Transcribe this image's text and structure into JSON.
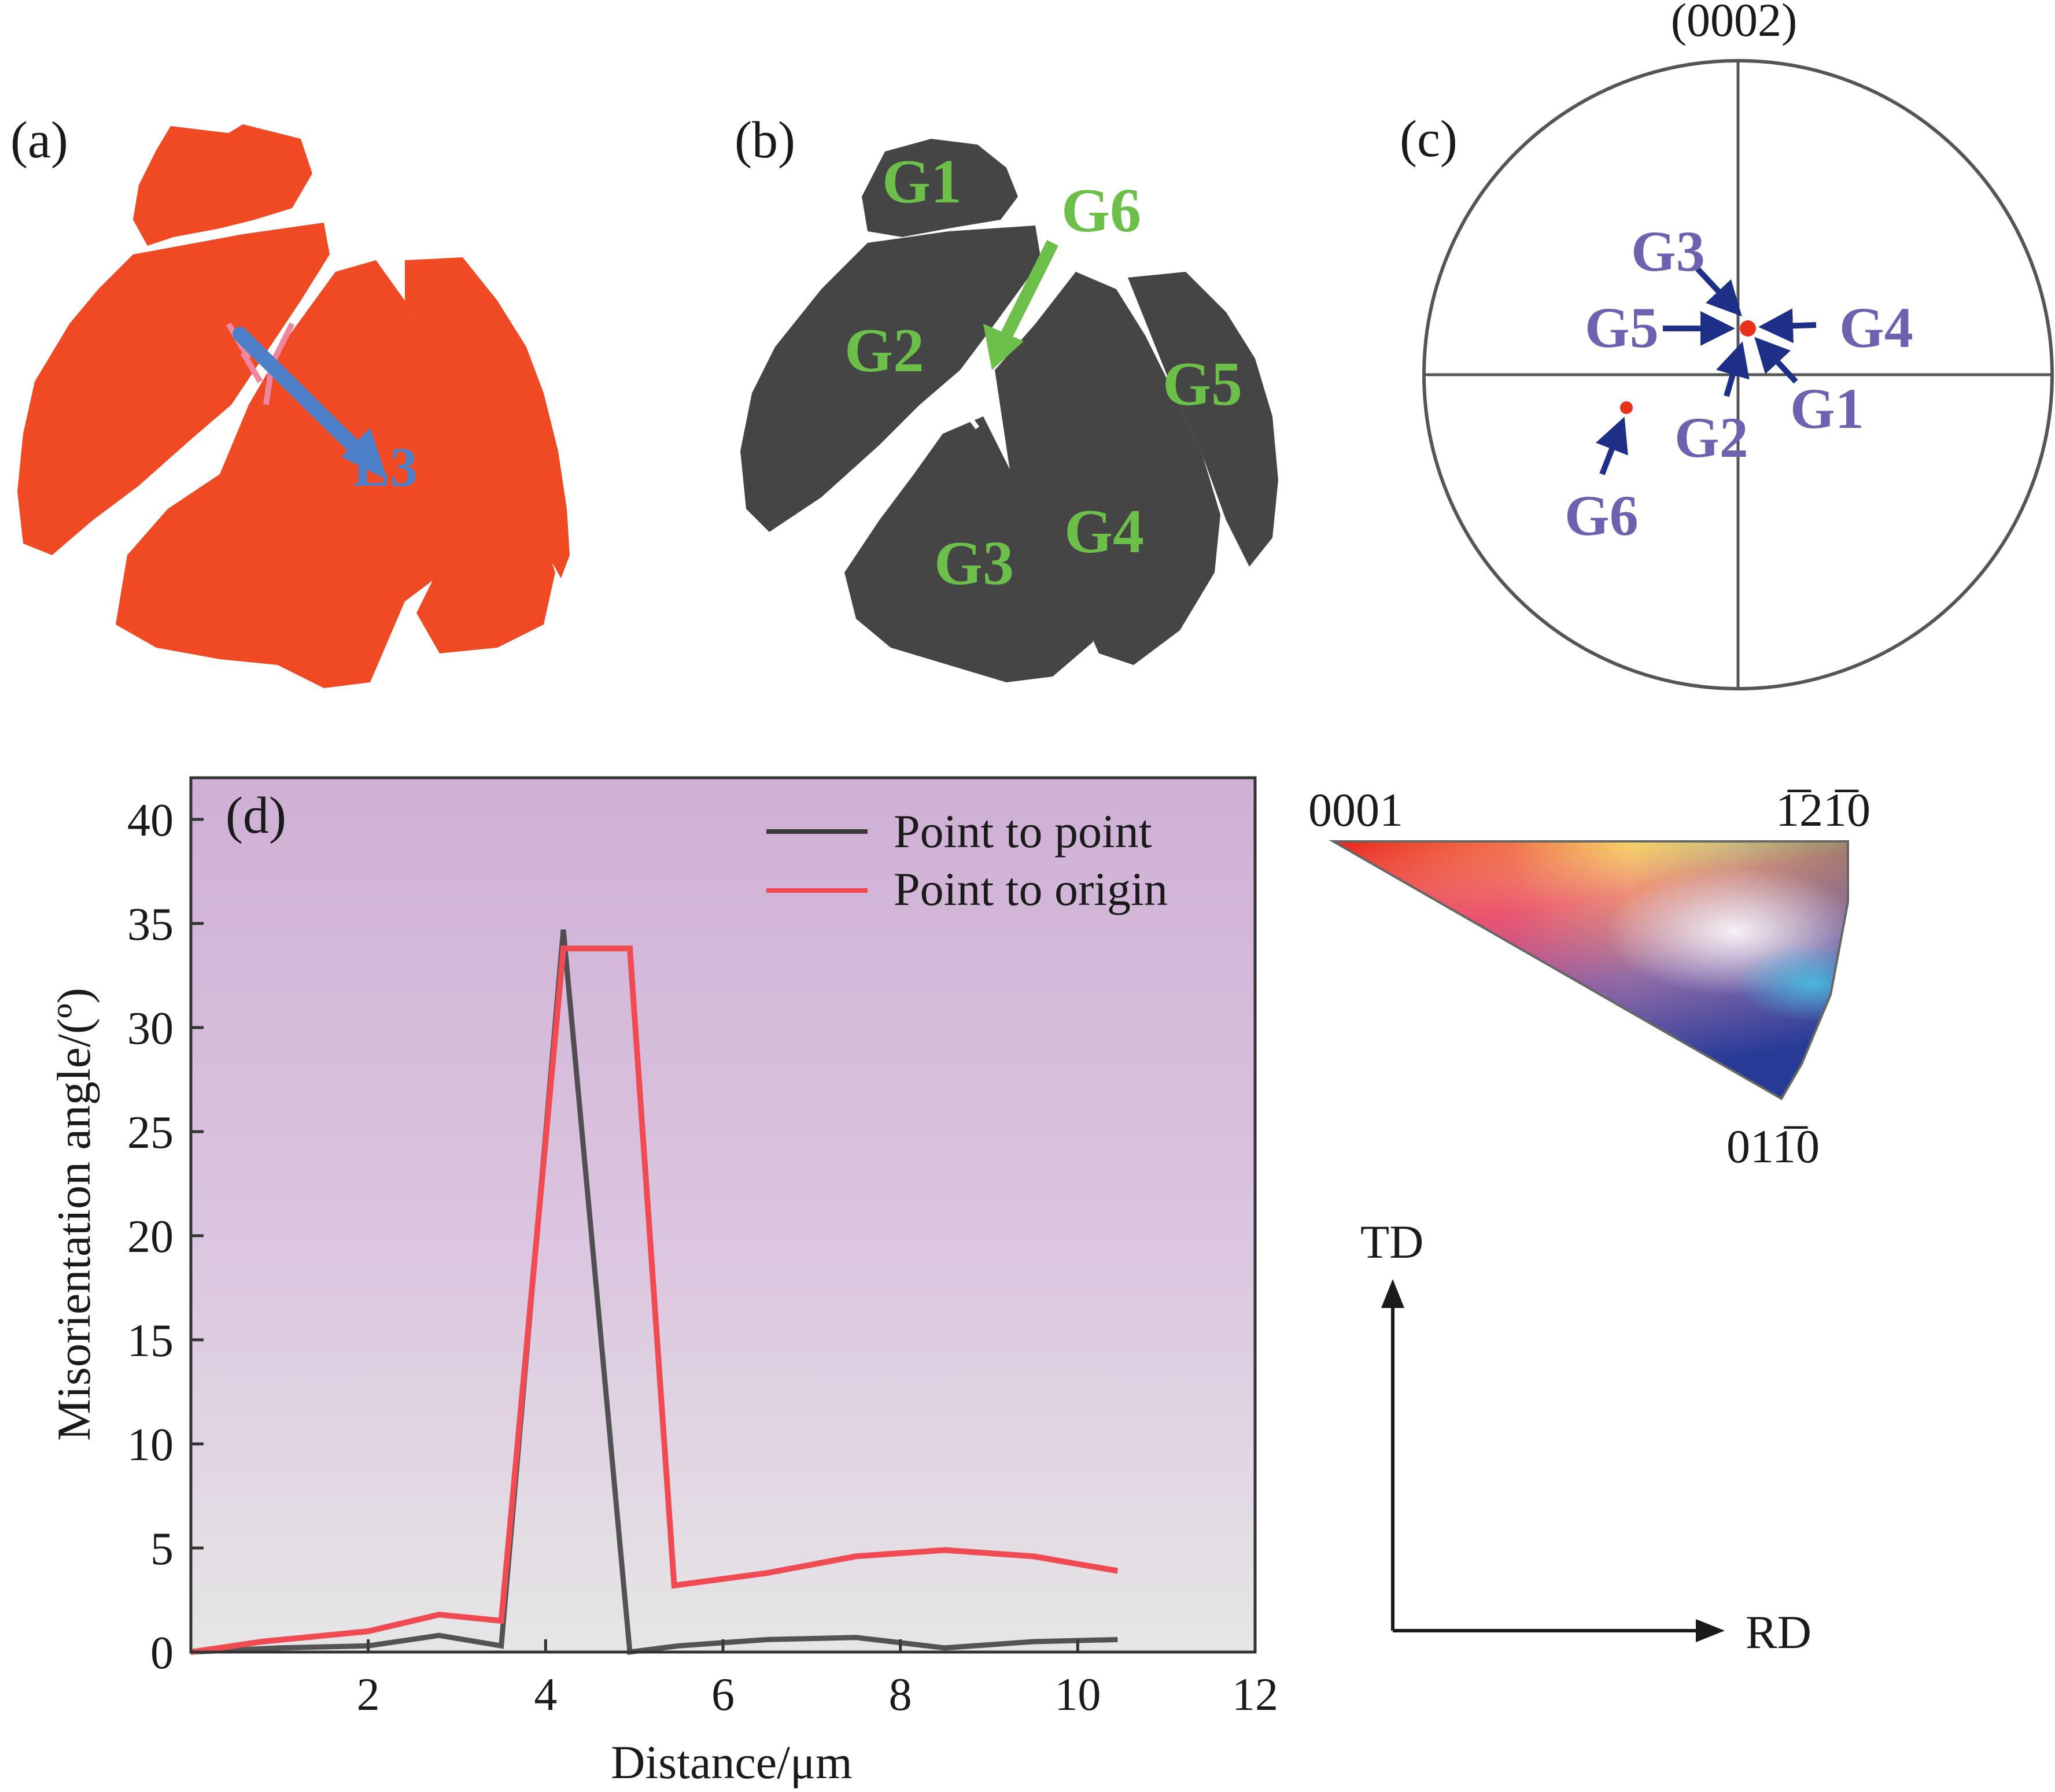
{
  "panels": {
    "a": {
      "label": "(a)",
      "line_label": "L3",
      "colors": {
        "grain": "#ef4a23",
        "arrow": "#4d80c8"
      }
    },
    "b": {
      "label": "(b)",
      "grains": [
        "G1",
        "G2",
        "G3",
        "G4",
        "G5",
        "G6"
      ],
      "colors": {
        "grain": "#454545",
        "label": "#6cc04a"
      }
    },
    "c": {
      "label": "(c)",
      "pole": "(0002)",
      "grains": [
        "G1",
        "G2",
        "G3",
        "G4",
        "G5",
        "G6"
      ],
      "colors": {
        "label": "#7060b0",
        "arrow": "#1d2f86",
        "point": "#e8321d"
      }
    },
    "d": {
      "label": "(d)"
    },
    "ipf": {
      "corners": {
        "basal": "0001",
        "top_right": "1̅21̅0",
        "bottom": "011̅0"
      }
    },
    "axes_ref": {
      "td": "TD",
      "rd": "RD"
    }
  },
  "chart_data": {
    "type": "line",
    "xlabel": "Distance/μm",
    "ylabel": "Misorientation angle/(º)",
    "xlim": [
      0,
      12
    ],
    "ylim": [
      0,
      42
    ],
    "xticks": [
      2,
      4,
      6,
      8,
      10,
      12
    ],
    "yticks": [
      0,
      5,
      10,
      15,
      20,
      25,
      30,
      35,
      40
    ],
    "legend_position": "top-right",
    "series": [
      {
        "name": "Point to point",
        "color": "#3a3a3a",
        "x": [
          0,
          1.0,
          2.0,
          2.8,
          3.5,
          4.2,
          4.95,
          5.5,
          6.5,
          7.5,
          8.5,
          9.5,
          10.45
        ],
        "y": [
          0,
          0.2,
          0.3,
          0.8,
          0.3,
          34.7,
          0,
          0.3,
          0.6,
          0.7,
          0.2,
          0.5,
          0.6
        ]
      },
      {
        "name": "Point to origin",
        "color": "#f04a52",
        "x": [
          0,
          0.8,
          2.0,
          2.8,
          3.5,
          4.2,
          4.95,
          5.45,
          6.5,
          7.5,
          8.5,
          9.5,
          10.45
        ],
        "y": [
          0,
          0.5,
          1.0,
          1.8,
          1.5,
          33.8,
          33.8,
          3.2,
          3.8,
          4.6,
          4.9,
          4.6,
          3.9
        ]
      }
    ]
  }
}
